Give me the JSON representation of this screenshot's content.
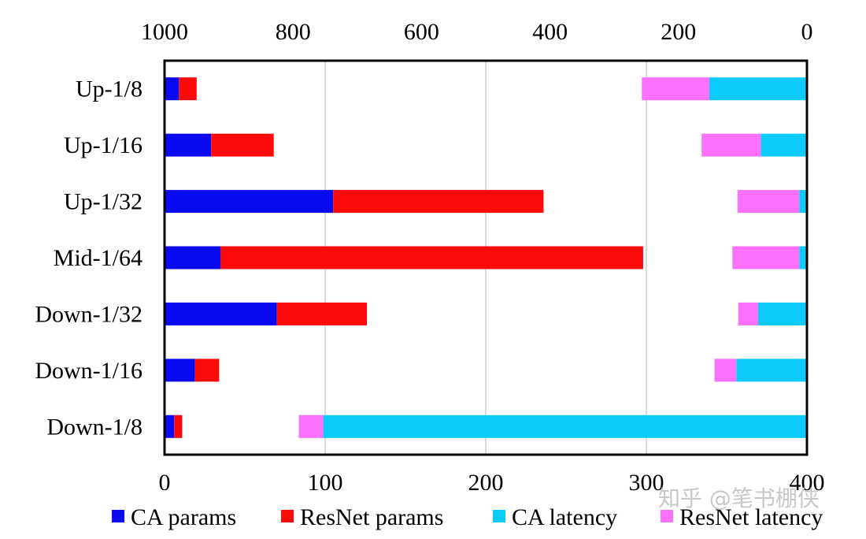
{
  "chart_data": {
    "type": "bar",
    "orientation": "horizontal-stacked-dual-axis",
    "categories": [
      "Up-1/8",
      "Up-1/16",
      "Up-1/32",
      "Mid-1/64",
      "Down-1/32",
      "Down-1/16",
      "Down-1/8"
    ],
    "params_axis": {
      "position": "bottom",
      "range": [
        0,
        400
      ],
      "ticks": [
        "0",
        "100",
        "200",
        "300",
        "400"
      ],
      "series": [
        {
          "name": "CA params",
          "color": "#0a0af0",
          "values": [
            9,
            29,
            105,
            35,
            70,
            19,
            6
          ]
        },
        {
          "name": "ResNet params",
          "color": "#ff0a0a",
          "values": [
            11,
            39,
            131,
            263,
            56,
            15,
            5
          ]
        }
      ]
    },
    "latency_axis": {
      "position": "top",
      "reversed": true,
      "range": [
        1000,
        0
      ],
      "ticks": [
        "1000",
        "800",
        "600",
        "400",
        "200",
        "0"
      ],
      "series": [
        {
          "name": "CA latency",
          "color": "#0ccbfa",
          "values": [
            152,
            72,
            12,
            12,
            76,
            110,
            753
          ]
        },
        {
          "name": "ResNet latency",
          "color": "#fb71fb",
          "values": [
            105,
            92,
            96,
            104,
            31,
            34,
            38
          ]
        }
      ]
    },
    "legend": [
      "CA params",
      "ResNet params",
      "CA latency",
      "ResNet latency"
    ],
    "legend_position": "bottom",
    "grid": true
  },
  "watermark": "知乎 @笔书棚侠"
}
